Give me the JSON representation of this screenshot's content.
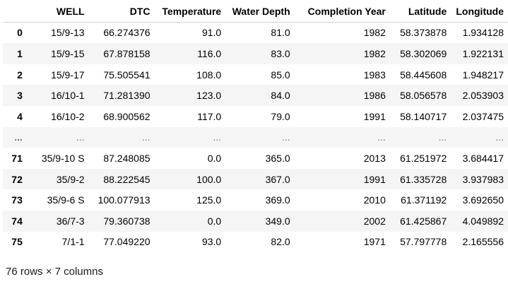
{
  "table": {
    "columns": [
      "",
      "WELL",
      "DTC",
      "Temperature",
      "Water Depth",
      "Completion Year",
      "Latitude",
      "Longitude"
    ],
    "rows": [
      {
        "index": "0",
        "cells": [
          "15/9-13",
          "66.274376",
          "91.0",
          "81.0",
          "1982",
          "58.373878",
          "1.934128"
        ]
      },
      {
        "index": "1",
        "cells": [
          "15/9-15",
          "67.878158",
          "116.0",
          "83.0",
          "1982",
          "58.302069",
          "1.922131"
        ]
      },
      {
        "index": "2",
        "cells": [
          "15/9-17",
          "75.505541",
          "108.0",
          "85.0",
          "1983",
          "58.445608",
          "1.948217"
        ]
      },
      {
        "index": "3",
        "cells": [
          "16/10-1",
          "71.281390",
          "123.0",
          "84.0",
          "1986",
          "58.056578",
          "2.053903"
        ]
      },
      {
        "index": "4",
        "cells": [
          "16/10-2",
          "68.900562",
          "117.0",
          "79.0",
          "1991",
          "58.140717",
          "2.037475"
        ]
      },
      {
        "index": "...",
        "cells": [
          "...",
          "...",
          "...",
          "...",
          "...",
          "...",
          "..."
        ]
      },
      {
        "index": "71",
        "cells": [
          "35/9-10 S",
          "87.248085",
          "0.0",
          "365.0",
          "2013",
          "61.251972",
          "3.684417"
        ]
      },
      {
        "index": "72",
        "cells": [
          "35/9-2",
          "88.222545",
          "100.0",
          "367.0",
          "1991",
          "61.335728",
          "3.937983"
        ]
      },
      {
        "index": "73",
        "cells": [
          "35/9-6 S",
          "100.077913",
          "125.0",
          "369.0",
          "2010",
          "61.371192",
          "3.692650"
        ]
      },
      {
        "index": "74",
        "cells": [
          "36/7-3",
          "79.360738",
          "0.0",
          "349.0",
          "2002",
          "61.425867",
          "4.049892"
        ]
      },
      {
        "index": "75",
        "cells": [
          "7/1-1",
          "77.049220",
          "93.0",
          "82.0",
          "1971",
          "57.797778",
          "2.165556"
        ]
      }
    ]
  },
  "shape_text": "76 rows × 7 columns"
}
